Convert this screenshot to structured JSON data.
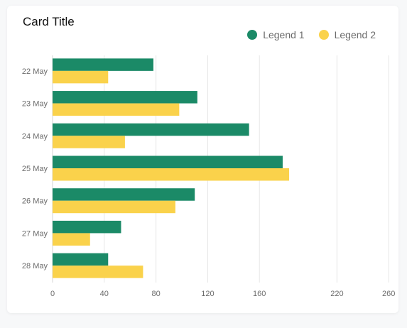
{
  "card": {
    "title": "Card Title"
  },
  "chart_data": {
    "type": "bar",
    "orientation": "horizontal",
    "title": "Card Title",
    "categories": [
      "22 May",
      "23 May",
      "24 May",
      "25 May",
      "26 May",
      "27 May",
      "28 May"
    ],
    "series": [
      {
        "name": "Legend 1",
        "color": "#1b8a67",
        "values": [
          78,
          112,
          152,
          178,
          110,
          53,
          43
        ]
      },
      {
        "name": "Legend 2",
        "color": "#fad24b",
        "values": [
          43,
          98,
          56,
          183,
          95,
          29,
          70
        ]
      }
    ],
    "xlim": [
      0,
      290
    ],
    "xticks": [
      0,
      40,
      80,
      120,
      160,
      220,
      260
    ],
    "grid": true,
    "legend_position": "top-right",
    "xlabel": "",
    "ylabel": ""
  }
}
